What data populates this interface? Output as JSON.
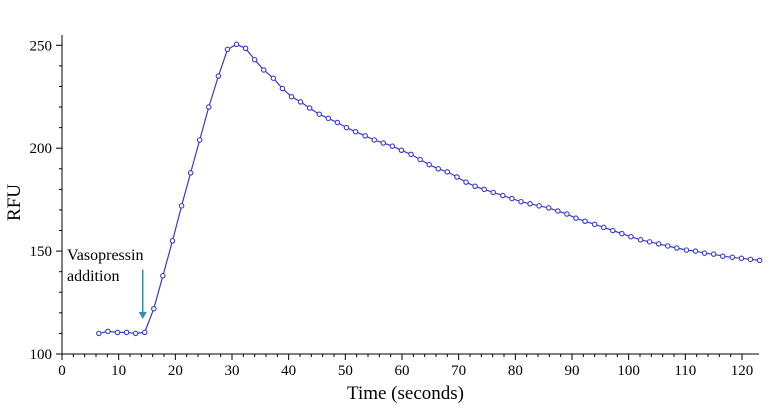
{
  "chart_data": {
    "type": "line",
    "title": "",
    "xlabel": "Time (seconds)",
    "ylabel": "RFU",
    "xlim": [
      0,
      123
    ],
    "ylim": [
      100,
      255
    ],
    "xticks": [
      0,
      10,
      20,
      30,
      40,
      50,
      60,
      70,
      80,
      90,
      100,
      110,
      120
    ],
    "yticks": [
      100,
      150,
      200,
      250
    ],
    "grid": false,
    "series": [
      {
        "name": "RFU",
        "color": "#3a3acd",
        "x": [
          6.5,
          8.1,
          9.8,
          11.4,
          13.0,
          14.6,
          16.2,
          17.8,
          19.5,
          21.1,
          22.7,
          24.3,
          25.9,
          27.6,
          29.2,
          30.8,
          32.4,
          34.0,
          35.6,
          37.3,
          38.9,
          40.5,
          42.1,
          43.7,
          45.4,
          47.0,
          48.6,
          50.2,
          51.8,
          53.5,
          55.1,
          56.7,
          58.3,
          59.9,
          61.6,
          63.2,
          64.8,
          66.4,
          68.0,
          69.7,
          71.3,
          72.9,
          74.5,
          76.1,
          77.8,
          79.4,
          81.0,
          82.6,
          84.2,
          85.9,
          87.5,
          89.1,
          90.7,
          92.3,
          94.0,
          95.6,
          97.2,
          98.8,
          100.4,
          102.1,
          103.7,
          105.3,
          106.9,
          108.5,
          110.2,
          111.8,
          113.4,
          115.0,
          116.6,
          118.3,
          119.9,
          121.5,
          123.1
        ],
        "y": [
          110,
          111,
          110.5,
          110.5,
          110,
          110.5,
          122,
          138,
          155,
          172,
          188,
          204,
          220,
          235,
          248,
          250.5,
          248.5,
          243,
          238,
          234,
          229,
          225,
          222.5,
          219.5,
          216.5,
          214.5,
          212.5,
          210,
          208,
          206,
          204,
          202.5,
          201,
          199,
          197,
          194.5,
          192,
          190,
          188.5,
          186,
          183.5,
          181.5,
          180,
          178.5,
          177,
          175.5,
          174,
          173,
          172,
          171,
          169.5,
          168,
          166,
          164.5,
          163,
          161.5,
          160,
          158.5,
          157,
          155.5,
          154.5,
          153.5,
          152.5,
          151.5,
          150.5,
          150,
          149,
          148.5,
          147.5,
          147,
          146.5,
          146,
          145.5
        ]
      }
    ],
    "annotations": [
      {
        "text_lines": [
          "Vasopressin",
          "addition"
        ],
        "arrow_x": 14.6,
        "arrow_y_from": 141,
        "arrow_y_to": 117,
        "color": "#2b8fb5"
      }
    ]
  }
}
